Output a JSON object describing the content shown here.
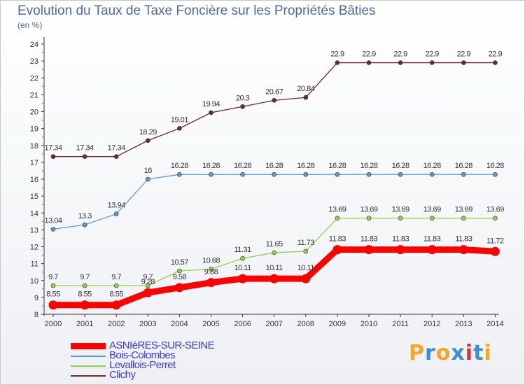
{
  "title": "Evolution du Taux de Taxe Foncière sur les Propriétés Bâties",
  "unit_label": "(en %)",
  "logo": {
    "text": "Proxiti",
    "colors": [
      "#f5a623",
      "#3a8fd8",
      "#f5a623",
      "#3a8fd8",
      "#e03030",
      "#3a8fd8",
      "#f5a623"
    ]
  },
  "chart_data": {
    "type": "line",
    "x": [
      "2000",
      "2001",
      "2002",
      "2003",
      "2004",
      "2005",
      "2006",
      "2007",
      "2008",
      "2009",
      "2010",
      "2011",
      "2012",
      "2013",
      "2014"
    ],
    "ylim": [
      8,
      24
    ],
    "yticks": [
      "8",
      "9",
      "10",
      "11",
      "12",
      "13",
      "14",
      "15",
      "16",
      "17",
      "18",
      "19",
      "20",
      "21",
      "22",
      "23",
      "24"
    ],
    "grid": false,
    "legend_position": "bottom-left",
    "series": [
      {
        "name": "ASNIèRES-SUR-SEINE",
        "color": "#ff0000",
        "highlight": true,
        "values": [
          8.55,
          8.55,
          8.55,
          9.28,
          9.58,
          9.88,
          10.11,
          10.11,
          10.11,
          11.83,
          11.83,
          11.83,
          11.83,
          11.83,
          11.72
        ],
        "labels": [
          "8.55",
          "8.55",
          "8.55",
          "9.28",
          "9.58",
          "9.88",
          "10.11",
          "10.11",
          "10.11",
          "11.83",
          "11.83",
          "11.83",
          "11.83",
          "11.83",
          "11.72"
        ]
      },
      {
        "name": "Bois-Colombes",
        "color": "#5b9bd5",
        "values": [
          13.04,
          13.3,
          13.94,
          16,
          16.28,
          16.28,
          16.28,
          16.28,
          16.28,
          16.28,
          16.28,
          16.28,
          16.28,
          16.28,
          16.28
        ],
        "labels": [
          "13.04",
          "13.3",
          "13.94",
          "16",
          "16.28",
          "16.28",
          "16.28",
          "16.28",
          "16.28",
          "16.28",
          "16.28",
          "16.28",
          "16.28",
          "16.28",
          "16.28"
        ]
      },
      {
        "name": "Levallois-Perret",
        "color": "#92d050",
        "values": [
          9.7,
          9.7,
          9.7,
          9.7,
          10.57,
          10.68,
          11.31,
          11.65,
          11.73,
          13.69,
          13.69,
          13.69,
          13.69,
          13.69,
          13.69
        ],
        "labels": [
          "9.7",
          "9.7",
          "9.7",
          "9.7",
          "10.57",
          "10.68",
          "11.31",
          "11.65",
          "11.73",
          "13.69",
          "13.69",
          "13.69",
          "13.69",
          "13.69",
          "13.69"
        ]
      },
      {
        "name": "Clichy",
        "color": "#6b2c2c",
        "values": [
          17.34,
          17.34,
          17.34,
          18.29,
          19.01,
          19.94,
          20.3,
          20.67,
          20.84,
          22.9,
          22.9,
          22.9,
          22.9,
          22.9,
          22.9
        ],
        "labels": [
          "17.34",
          "17.34",
          "17.34",
          "18.29",
          "19.01",
          "19.94",
          "20.3",
          "20.67",
          "20.84",
          "22.9",
          "22.9",
          "22.9",
          "22.9",
          "22.9",
          "22.9"
        ]
      }
    ]
  }
}
